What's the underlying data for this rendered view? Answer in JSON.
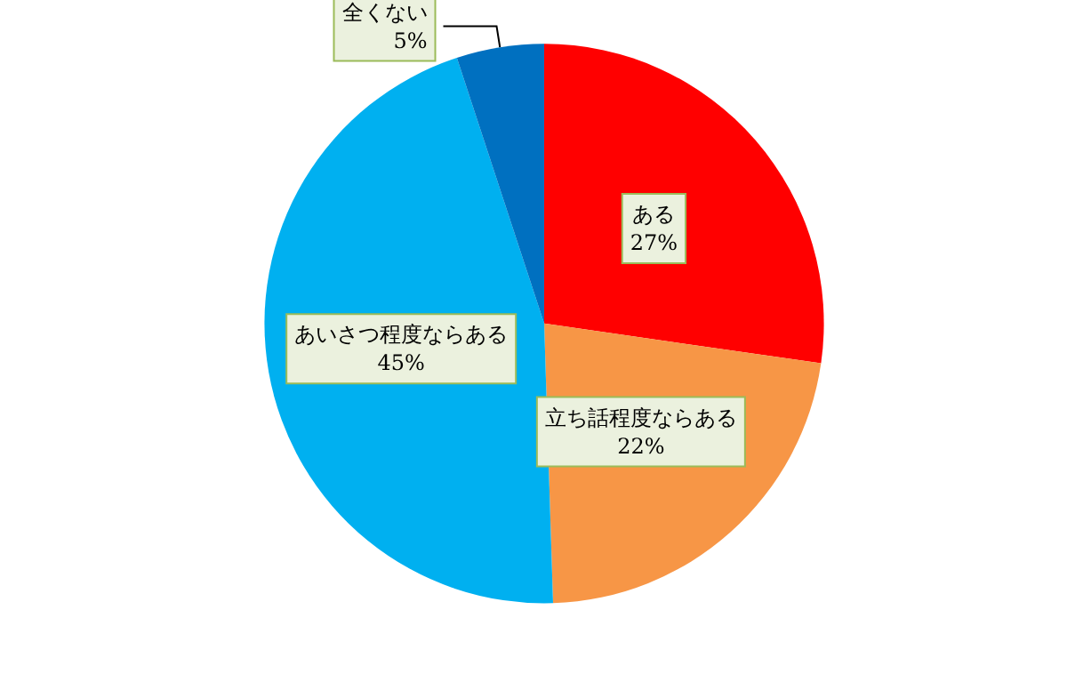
{
  "chart_data": {
    "type": "pie",
    "categories": [
      "ある",
      "立ち話程度ならある",
      "あいさつ程度ならある",
      "全くない"
    ],
    "values": [
      27,
      22,
      45,
      5
    ],
    "value_labels": [
      "27%",
      "22%",
      "45%",
      "5%"
    ],
    "colors": [
      "#ff0000",
      "#f79646",
      "#00b0f0",
      "#0070c0"
    ],
    "legend": false
  }
}
